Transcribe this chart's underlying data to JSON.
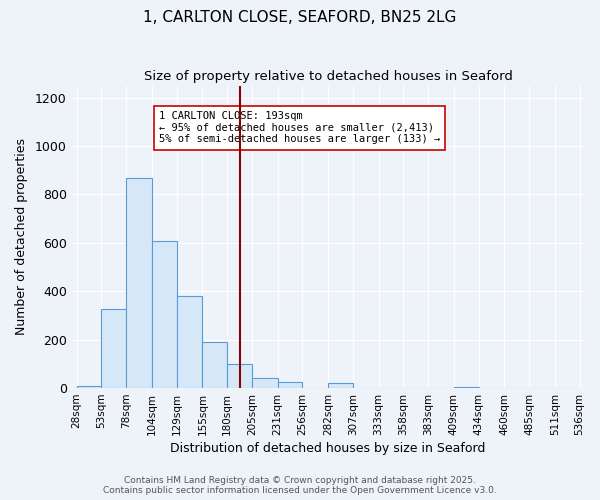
{
  "title_line1": "1, CARLTON CLOSE, SEAFORD, BN25 2LG",
  "title_line2": "Size of property relative to detached houses in Seaford",
  "xlabel": "Distribution of detached houses by size in Seaford",
  "ylabel": "Number of detached properties",
  "bar_edges": [
    28,
    53,
    78,
    104,
    129,
    155,
    180,
    205,
    231,
    256,
    282,
    307,
    333,
    358,
    383,
    409,
    434,
    460,
    485,
    511,
    536
  ],
  "bar_heights": [
    10,
    325,
    868,
    608,
    380,
    190,
    100,
    43,
    25,
    0,
    20,
    0,
    0,
    0,
    0,
    5,
    0,
    0,
    0,
    0
  ],
  "bar_facecolor": "#d6e8f7",
  "bar_edgecolor": "#5b9bd5",
  "vline_x": 193,
  "vline_color": "#8b0000",
  "annotation_title": "1 CARLTON CLOSE: 193sqm",
  "annotation_line1": "← 95% of detached houses are smaller (2,413)",
  "annotation_line2": "5% of semi-detached houses are larger (133) →",
  "ylim": [
    0,
    1250
  ],
  "yticks": [
    0,
    200,
    400,
    600,
    800,
    1000,
    1200
  ],
  "tick_labels": [
    "28sqm",
    "53sqm",
    "78sqm",
    "104sqm",
    "129sqm",
    "155sqm",
    "180sqm",
    "205sqm",
    "231sqm",
    "256sqm",
    "282sqm",
    "307sqm",
    "333sqm",
    "358sqm",
    "383sqm",
    "409sqm",
    "434sqm",
    "460sqm",
    "485sqm",
    "511sqm",
    "536sqm"
  ],
  "footer_line1": "Contains HM Land Registry data © Crown copyright and database right 2025.",
  "footer_line2": "Contains public sector information licensed under the Open Government Licence v3.0.",
  "bg_color": "#eef2f9",
  "grid_color": "#ffffff",
  "title_fontsize": 11,
  "subtitle_fontsize": 9.5,
  "axis_label_fontsize": 9,
  "tick_fontsize": 7.5,
  "footer_fontsize": 6.5
}
